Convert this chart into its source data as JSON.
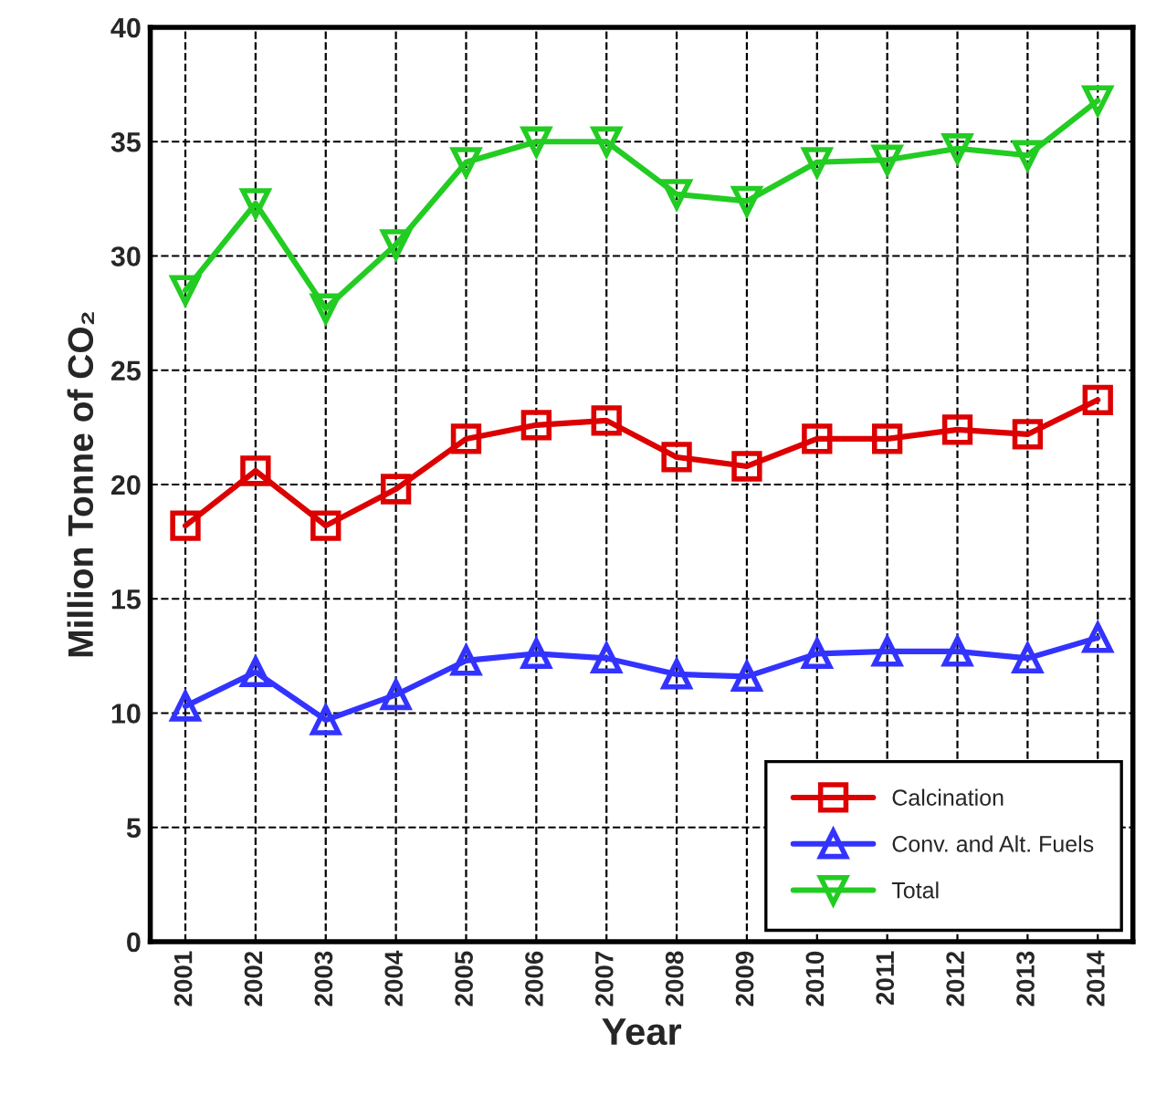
{
  "chart_data": {
    "type": "line",
    "xlabel": "Year",
    "ylabel": "Million Tonne of CO₂",
    "categories": [
      "2001",
      "2002",
      "2003",
      "2004",
      "2005",
      "2006",
      "2007",
      "2008",
      "2009",
      "2010",
      "2011",
      "2012",
      "2013",
      "2014"
    ],
    "series": [
      {
        "name": "Calcination",
        "color": "#dd0000",
        "marker": "square",
        "values": [
          18.2,
          20.6,
          18.2,
          19.8,
          22.0,
          22.6,
          22.8,
          21.2,
          20.8,
          22.0,
          22.0,
          22.4,
          22.2,
          23.7
        ]
      },
      {
        "name": "Conv. and Alt. Fuels",
        "color": "#3333ff",
        "marker": "triangle",
        "values": [
          10.3,
          11.8,
          9.7,
          10.8,
          12.3,
          12.6,
          12.4,
          11.7,
          11.6,
          12.6,
          12.7,
          12.7,
          12.4,
          13.3
        ]
      },
      {
        "name": "Total",
        "color": "#22cc22",
        "marker": "triangle_down",
        "values": [
          28.5,
          32.3,
          27.7,
          30.5,
          34.1,
          35.0,
          35.0,
          32.7,
          32.4,
          34.1,
          34.2,
          34.7,
          34.4,
          36.8
        ]
      }
    ],
    "ylim": [
      0,
      40
    ],
    "yticks": [
      0,
      5,
      10,
      15,
      20,
      25,
      30,
      35,
      40
    ],
    "grid": true,
    "legend": "bottom right",
    "line_style": "solid"
  }
}
